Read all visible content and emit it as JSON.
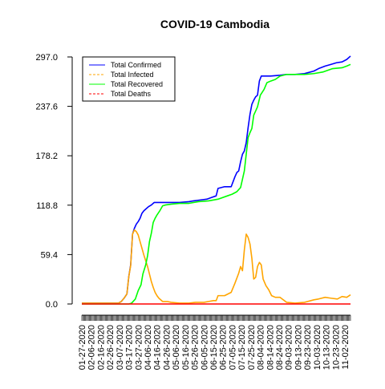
{
  "chart_data": {
    "type": "line",
    "title": "COVID-19 Cambodia",
    "xlabel": "",
    "ylabel": "",
    "ylim": [
      0,
      297
    ],
    "y_ticks": [
      "0.0",
      "59.4",
      "118.8",
      "178.2",
      "237.6",
      "297.0"
    ],
    "y_tick_values": [
      0,
      59.4,
      118.8,
      178.2,
      237.6,
      297.0
    ],
    "x_ticks": [
      "01-27-2020",
      "02-06-2020",
      "02-16-2020",
      "02-26-2020",
      "03-07-2020",
      "03-17-2020",
      "03-27-2020",
      "04-06-2020",
      "04-16-2020",
      "04-26-2020",
      "05-06-2020",
      "05-16-2020",
      "05-26-2020",
      "06-05-2020",
      "06-15-2020",
      "06-25-2020",
      "07-05-2020",
      "07-15-2020",
      "07-25-2020",
      "08-04-2020",
      "08-14-2020",
      "08-24-2020",
      "09-03-2020",
      "09-13-2020",
      "09-23-2020",
      "10-03-2020",
      "10-13-2020",
      "10-23-2020",
      "11-02-2020"
    ],
    "x_start": "01-27-2020",
    "x_end": "11-08-2020",
    "grid": false,
    "legend_position": "top-left",
    "series": [
      {
        "name": "Total Confirmed",
        "color": "#0000ff",
        "style": "solid",
        "points": [
          [
            "01-27-2020",
            1
          ],
          [
            "03-06-2020",
            1
          ],
          [
            "03-09-2020",
            3
          ],
          [
            "03-12-2020",
            7
          ],
          [
            "03-15-2020",
            12
          ],
          [
            "03-17-2020",
            33
          ],
          [
            "03-19-2020",
            47
          ],
          [
            "03-21-2020",
            84
          ],
          [
            "03-23-2020",
            91
          ],
          [
            "03-25-2020",
            96
          ],
          [
            "03-27-2020",
            99
          ],
          [
            "03-29-2020",
            103
          ],
          [
            "03-31-2020",
            109
          ],
          [
            "04-02-2020",
            112
          ],
          [
            "04-04-2020",
            114
          ],
          [
            "04-07-2020",
            117
          ],
          [
            "04-10-2020",
            119
          ],
          [
            "04-13-2020",
            122
          ],
          [
            "05-01-2020",
            122
          ],
          [
            "05-10-2020",
            122
          ],
          [
            "05-20-2020",
            123
          ],
          [
            "05-25-2020",
            124
          ],
          [
            "06-01-2020",
            125
          ],
          [
            "06-08-2020",
            126
          ],
          [
            "06-13-2020",
            128
          ],
          [
            "06-18-2020",
            130
          ],
          [
            "06-20-2020",
            139
          ],
          [
            "06-27-2020",
            141
          ],
          [
            "07-02-2020",
            141
          ],
          [
            "07-04-2020",
            141
          ],
          [
            "07-08-2020",
            153
          ],
          [
            "07-10-2020",
            158
          ],
          [
            "07-12-2020",
            160
          ],
          [
            "07-14-2020",
            171
          ],
          [
            "07-16-2020",
            180
          ],
          [
            "07-18-2020",
            184
          ],
          [
            "07-20-2020",
            194
          ],
          [
            "07-22-2020",
            212
          ],
          [
            "07-24-2020",
            228
          ],
          [
            "07-26-2020",
            240
          ],
          [
            "07-28-2020",
            245
          ],
          [
            "07-30-2020",
            249
          ],
          [
            "08-01-2020",
            251
          ],
          [
            "08-03-2020",
            268
          ],
          [
            "08-05-2020",
            274
          ],
          [
            "08-15-2020",
            274
          ],
          [
            "08-25-2020",
            275
          ],
          [
            "09-01-2020",
            276
          ],
          [
            "09-10-2020",
            276
          ],
          [
            "09-20-2020",
            277
          ],
          [
            "09-30-2020",
            280
          ],
          [
            "10-05-2020",
            283
          ],
          [
            "10-12-2020",
            286
          ],
          [
            "10-18-2020",
            288
          ],
          [
            "10-24-2020",
            290
          ],
          [
            "10-30-2020",
            291
          ],
          [
            "11-04-2020",
            294
          ],
          [
            "11-08-2020",
            298
          ]
        ]
      },
      {
        "name": "Total Infected",
        "color": "#ffa500",
        "style": "dashed-legend",
        "points": [
          [
            "01-27-2020",
            1
          ],
          [
            "03-06-2020",
            1
          ],
          [
            "03-09-2020",
            3
          ],
          [
            "03-12-2020",
            7
          ],
          [
            "03-15-2020",
            12
          ],
          [
            "03-17-2020",
            33
          ],
          [
            "03-19-2020",
            46
          ],
          [
            "03-21-2020",
            84
          ],
          [
            "03-23-2020",
            89
          ],
          [
            "03-25-2020",
            87
          ],
          [
            "03-27-2020",
            83
          ],
          [
            "03-29-2020",
            75
          ],
          [
            "03-31-2020",
            67
          ],
          [
            "04-02-2020",
            59
          ],
          [
            "04-04-2020",
            52
          ],
          [
            "04-06-2020",
            45
          ],
          [
            "04-08-2020",
            36
          ],
          [
            "04-10-2020",
            27
          ],
          [
            "04-12-2020",
            20
          ],
          [
            "04-14-2020",
            14
          ],
          [
            "04-16-2020",
            10
          ],
          [
            "04-18-2020",
            7
          ],
          [
            "04-22-2020",
            3
          ],
          [
            "04-27-2020",
            3
          ],
          [
            "05-01-2020",
            2
          ],
          [
            "05-10-2020",
            1
          ],
          [
            "05-20-2020",
            1
          ],
          [
            "05-27-2020",
            2
          ],
          [
            "06-05-2020",
            2
          ],
          [
            "06-10-2020",
            3
          ],
          [
            "06-15-2020",
            4
          ],
          [
            "06-18-2020",
            4
          ],
          [
            "06-20-2020",
            10
          ],
          [
            "06-27-2020",
            10
          ],
          [
            "07-04-2020",
            14
          ],
          [
            "07-08-2020",
            25
          ],
          [
            "07-12-2020",
            37
          ],
          [
            "07-14-2020",
            45
          ],
          [
            "07-16-2020",
            40
          ],
          [
            "07-18-2020",
            65
          ],
          [
            "07-20-2020",
            84
          ],
          [
            "07-22-2020",
            80
          ],
          [
            "07-24-2020",
            72
          ],
          [
            "07-26-2020",
            55
          ],
          [
            "07-28-2020",
            30
          ],
          [
            "07-30-2020",
            32
          ],
          [
            "08-01-2020",
            45
          ],
          [
            "08-03-2020",
            50
          ],
          [
            "08-05-2020",
            47
          ],
          [
            "08-07-2020",
            30
          ],
          [
            "08-10-2020",
            22
          ],
          [
            "08-13-2020",
            17
          ],
          [
            "08-16-2020",
            10
          ],
          [
            "08-20-2020",
            8
          ],
          [
            "08-25-2020",
            8
          ],
          [
            "09-01-2020",
            2
          ],
          [
            "09-10-2020",
            1
          ],
          [
            "09-20-2020",
            2
          ],
          [
            "09-30-2020",
            5
          ],
          [
            "10-05-2020",
            6
          ],
          [
            "10-12-2020",
            8
          ],
          [
            "10-18-2020",
            7
          ],
          [
            "10-25-2020",
            6
          ],
          [
            "10-30-2020",
            9
          ],
          [
            "11-04-2020",
            8
          ],
          [
            "11-08-2020",
            11
          ]
        ]
      },
      {
        "name": "Total Recovered",
        "color": "#00ff00",
        "style": "solid",
        "points": [
          [
            "01-27-2020",
            0
          ],
          [
            "03-17-2020",
            0
          ],
          [
            "03-20-2020",
            1
          ],
          [
            "03-24-2020",
            6
          ],
          [
            "03-27-2020",
            16
          ],
          [
            "03-30-2020",
            23
          ],
          [
            "04-01-2020",
            36
          ],
          [
            "04-04-2020",
            47
          ],
          [
            "04-06-2020",
            58
          ],
          [
            "04-08-2020",
            75
          ],
          [
            "04-10-2020",
            85
          ],
          [
            "04-12-2020",
            98
          ],
          [
            "04-14-2020",
            103
          ],
          [
            "04-16-2020",
            107
          ],
          [
            "04-19-2020",
            112
          ],
          [
            "04-22-2020",
            118
          ],
          [
            "04-25-2020",
            119
          ],
          [
            "05-01-2020",
            120
          ],
          [
            "05-10-2020",
            121
          ],
          [
            "05-20-2020",
            121
          ],
          [
            "05-30-2020",
            123
          ],
          [
            "06-10-2020",
            124
          ],
          [
            "06-20-2020",
            126
          ],
          [
            "06-30-2020",
            130
          ],
          [
            "07-05-2020",
            132
          ],
          [
            "07-10-2020",
            135
          ],
          [
            "07-14-2020",
            140
          ],
          [
            "07-16-2020",
            150
          ],
          [
            "07-18-2020",
            160
          ],
          [
            "07-20-2020",
            180
          ],
          [
            "07-22-2020",
            200
          ],
          [
            "07-24-2020",
            206
          ],
          [
            "07-26-2020",
            211
          ],
          [
            "07-28-2020",
            227
          ],
          [
            "07-30-2020",
            232
          ],
          [
            "08-01-2020",
            237
          ],
          [
            "08-04-2020",
            251
          ],
          [
            "08-08-2020",
            258
          ],
          [
            "08-11-2020",
            266
          ],
          [
            "08-15-2020",
            268
          ],
          [
            "08-20-2020",
            270
          ],
          [
            "08-25-2020",
            274
          ],
          [
            "09-01-2020",
            276
          ],
          [
            "09-10-2020",
            276
          ],
          [
            "09-20-2020",
            276
          ],
          [
            "09-30-2020",
            277
          ],
          [
            "10-10-2020",
            279
          ],
          [
            "10-20-2020",
            283
          ],
          [
            "10-30-2020",
            284
          ],
          [
            "11-04-2020",
            286
          ],
          [
            "11-08-2020",
            288
          ]
        ]
      },
      {
        "name": "Total Deaths",
        "color": "#ff0000",
        "style": "dashed-legend",
        "points": [
          [
            "01-27-2020",
            0
          ],
          [
            "11-08-2020",
            0
          ]
        ]
      }
    ]
  }
}
